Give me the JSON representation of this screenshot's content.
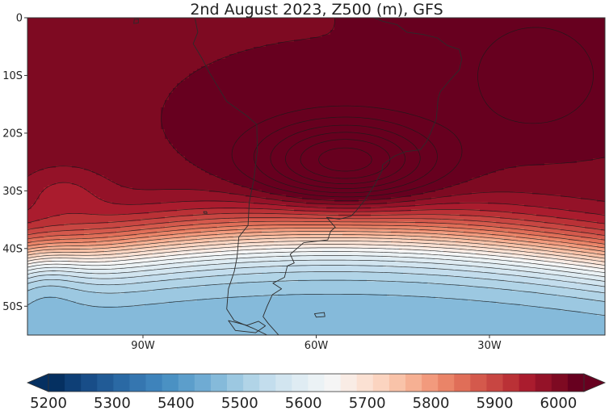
{
  "title": "2nd August 2023, Z500 (m), GFS",
  "map": {
    "lat_labels": [
      "0",
      "10S",
      "20S",
      "30S",
      "40S",
      "50S"
    ],
    "lon_labels": [
      "90W",
      "60W",
      "30W"
    ],
    "extent": {
      "lon": [
        -110,
        -10
      ],
      "lat": [
        -55,
        0
      ]
    },
    "contour_field": "500 hPa geopotential height (Z500), metres",
    "high_center": {
      "lon": -55,
      "lat": -25
    },
    "low_center": {
      "lon": -108,
      "lat": -44
    }
  },
  "colorbar": {
    "labels": [
      "5200",
      "5300",
      "5400",
      "5500",
      "5600",
      "5700",
      "5800",
      "5900",
      "6000"
    ],
    "min": 5200,
    "max": 6040,
    "step": 20,
    "colors": [
      "#053061",
      "#0e3f76",
      "#184d88",
      "#215b96",
      "#2a69a4",
      "#3576b0",
      "#3e83bb",
      "#4a91c3",
      "#5c9ecb",
      "#6fabd3",
      "#85bada",
      "#9cc8e1",
      "#b1d4e7",
      "#c3dded",
      "#d2e5f0",
      "#dfecf3",
      "#ebf2f5",
      "#f5f5f5",
      "#f9ece5",
      "#fbe1d3",
      "#fbd4c0",
      "#f9c3a9",
      "#f6b093",
      "#f29a7d",
      "#ea8468",
      "#e06e58",
      "#d4594c",
      "#c84642",
      "#ba3136",
      "#aa1c2e",
      "#941228",
      "#7e0a22",
      "#67001f"
    ],
    "under_color": "#053061",
    "over_color": "#67001f"
  }
}
